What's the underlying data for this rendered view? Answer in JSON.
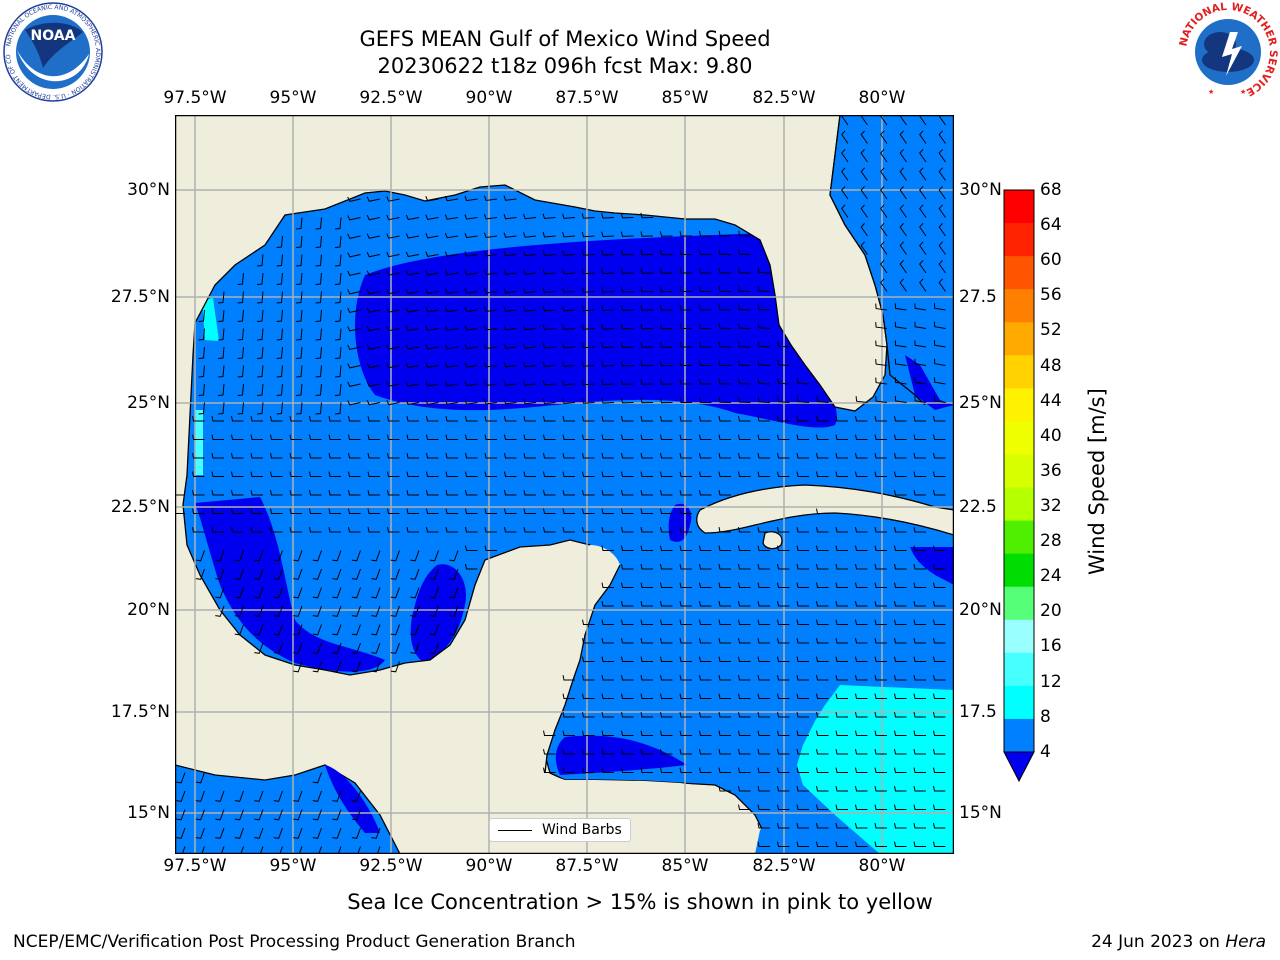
{
  "title": {
    "line1": "GEFS MEAN Gulf of Mexico Wind Speed",
    "line2": "20230622 t18z 096h fcst   Max: 9.80"
  },
  "logos": {
    "left_text": "NOAA",
    "left_ring": "NATIONAL OCEANIC AND ATMOSPHERIC ADMINISTRATION · U.S. DEPARTMENT OF COMMERCE",
    "right_ring": "NATIONAL WEATHER SERVICE"
  },
  "map": {
    "lon_labels": [
      "97.5°W",
      "95°W",
      "92.5°W",
      "90°W",
      "87.5°W",
      "85°W",
      "82.5°W",
      "80°W"
    ],
    "lat_labels_left": [
      "30°N",
      "27.5°N",
      "25°N",
      "22.5°N",
      "20°N",
      "17.5°N",
      "15°N"
    ],
    "lat_labels_right": [
      "30°N",
      "27.5",
      "25°N",
      "22.5",
      "20°N",
      "17.5",
      "15°N"
    ],
    "extent": {
      "lon": [
        -98,
        -78
      ],
      "lat": [
        14,
        31.7
      ]
    },
    "colors": {
      "land": "#efeedc",
      "speed_4_8": "#0080ff",
      "speed_lt_4": "#0000ee",
      "speed_8_12": "#00ffff",
      "speed_12_16": "#46ffff",
      "coast": "#000000",
      "grid": "#b0b0b0"
    }
  },
  "legend": {
    "label": "Wind Barbs"
  },
  "colorbar": {
    "label": "Wind Speed [m/s]",
    "ticks": [
      "68",
      "64",
      "60",
      "56",
      "52",
      "48",
      "44",
      "40",
      "36",
      "32",
      "28",
      "24",
      "20",
      "16",
      "12",
      "8",
      "4"
    ],
    "colors": [
      "#ff0000",
      "#ff2200",
      "#ff5500",
      "#ff8000",
      "#ffaa00",
      "#ffd200",
      "#fff200",
      "#f0ff00",
      "#d8ff00",
      "#b4ff00",
      "#50ee00",
      "#00dd00",
      "#55ff77",
      "#99ffff",
      "#46ffff",
      "#00ffff",
      "#0080ff"
    ],
    "extend_color": "#0000ee"
  },
  "caption": "Sea Ice Concentration > 15% is shown in pink to yellow",
  "footer": {
    "left": "NCEP/EMC/Verification Post Processing Product Generation Branch",
    "right_date": "24 Jun 2023 on ",
    "right_host": "Hera"
  }
}
